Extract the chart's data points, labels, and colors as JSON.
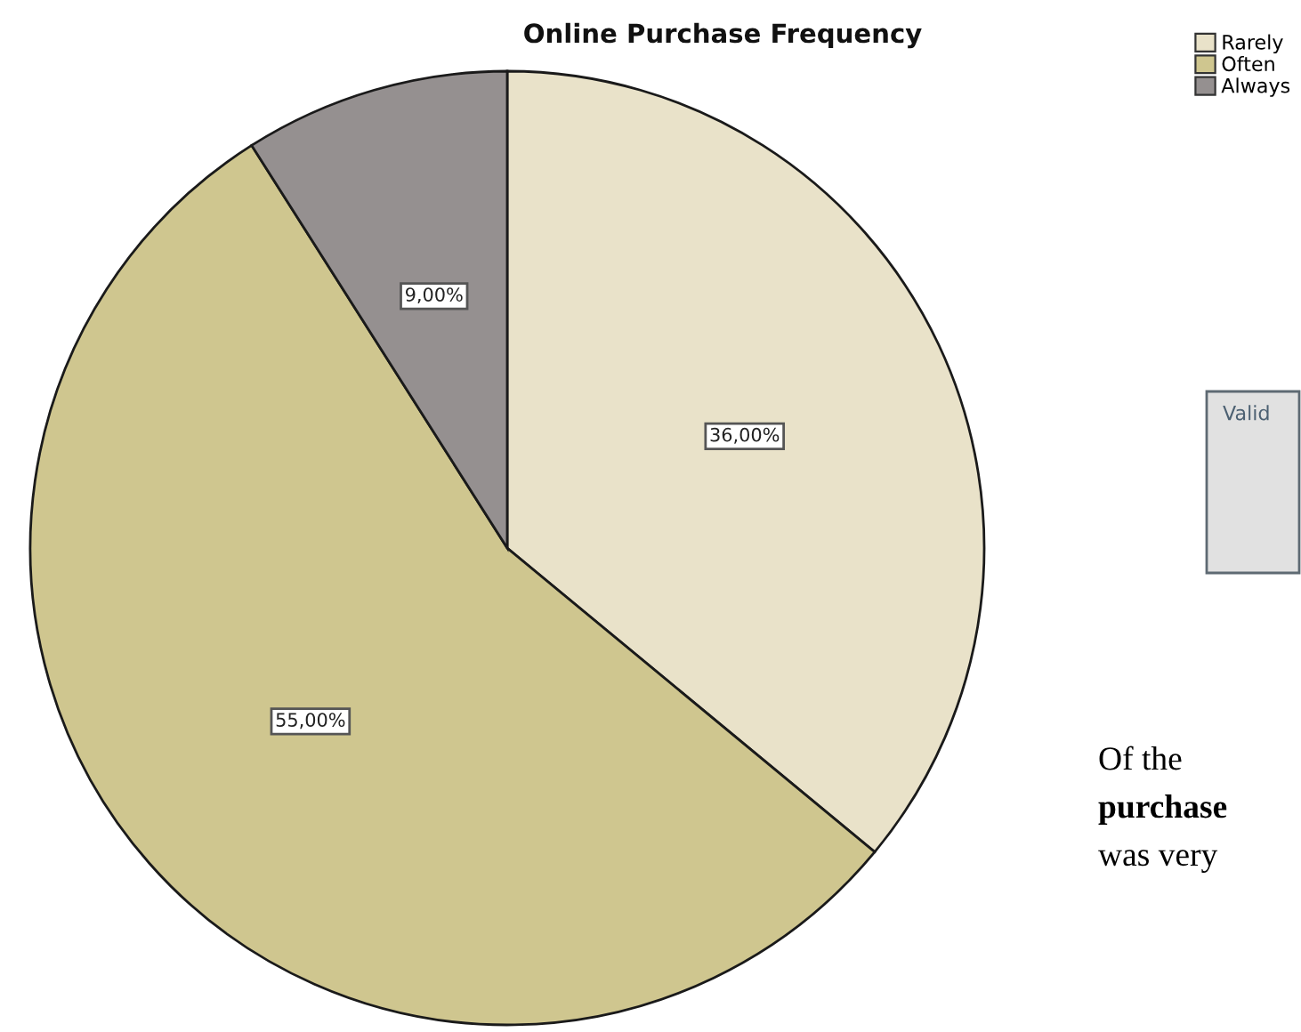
{
  "chart_data": {
    "type": "pie",
    "title": "Online Purchase Frequency",
    "categories": [
      "Rarely",
      "Often",
      "Always"
    ],
    "values": [
      36,
      55,
      9
    ],
    "colors": [
      "#e9e2c9",
      "#cfc68f",
      "#959090"
    ],
    "value_labels": [
      "36,00%",
      "55,00%",
      "9,00%"
    ],
    "legend": "top right",
    "annotations": [
      "Valid",
      "Of the",
      "purchase",
      "was very"
    ]
  }
}
